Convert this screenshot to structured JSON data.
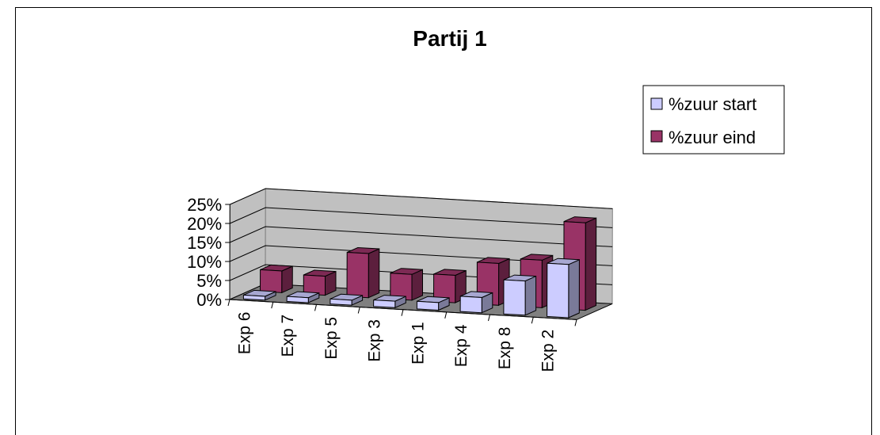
{
  "chart_data": {
    "type": "bar",
    "title": "Partij 1",
    "categories": [
      "Exp 6",
      "Exp 7",
      "Exp 5",
      "Exp 3",
      "Exp 1",
      "Exp 4",
      "Exp 8",
      "Exp 2"
    ],
    "series": [
      {
        "name": "%zuur start",
        "values": [
          0.01,
          0.013,
          0.013,
          0.017,
          0.02,
          0.04,
          0.09,
          0.14
        ],
        "color": "#ccccff"
      },
      {
        "name": "%zuur eind",
        "values": [
          0.057,
          0.05,
          0.116,
          0.068,
          0.072,
          0.11,
          0.125,
          0.23
        ],
        "color": "#993366"
      }
    ],
    "yticks": [
      "0%",
      "5%",
      "10%",
      "15%",
      "20%",
      "25%"
    ],
    "ylim": [
      0,
      0.25
    ],
    "grid": true,
    "legend_position": "right",
    "wall_color": "#c0c0c0",
    "floor_color": "#808080"
  }
}
